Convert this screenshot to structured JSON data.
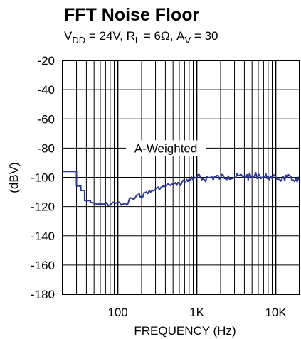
{
  "chart_data": {
    "type": "line",
    "title": "FFT Noise Floor",
    "subtitle": {
      "vdd_name": "V",
      "vdd_sub": "DD",
      "vdd_val": " = 24V, ",
      "rl_name": "R",
      "rl_sub": "L",
      "rl_val": " = 6Ω, ",
      "av_name": "A",
      "av_sub": "V",
      "av_val": " = 30"
    },
    "xlabel": "FREQUENCY (Hz)",
    "ylabel": "(dBV)",
    "x_scale": "log",
    "xlim": [
      20,
      20000
    ],
    "ylim": [
      -180,
      -20
    ],
    "y_ticks": [
      -20,
      -40,
      -60,
      -80,
      -100,
      -120,
      -140,
      -160,
      -180
    ],
    "x_tick_values": [
      100,
      1000,
      10000
    ],
    "x_tick_labels": [
      "100",
      "1K",
      "10K"
    ],
    "grid": true,
    "annotation": "A-Weighted",
    "series_color": "#2b3990",
    "series": [
      {
        "x": [
          20,
          30,
          30,
          34,
          34,
          38,
          38,
          45,
          45,
          52,
          60,
          70,
          80,
          90,
          100,
          110,
          120,
          130,
          145,
          160,
          180,
          200,
          230,
          260,
          300,
          350,
          400,
          450,
          500,
          600,
          700,
          800,
          900,
          1000,
          1200,
          1500,
          2000,
          2500,
          3000,
          4000,
          5000,
          6000,
          7000,
          8000,
          9000,
          10000,
          12000,
          14000,
          16000,
          18000,
          20000
        ],
        "y": [
          -96,
          -96,
          -106,
          -106,
          -109,
          -109,
          -116,
          -116,
          -117,
          -118,
          -119,
          -118,
          -119,
          -117,
          -117,
          -119,
          -118,
          -119,
          -114,
          -115,
          -112,
          -113,
          -110,
          -110,
          -108,
          -107,
          -106,
          -105,
          -105,
          -104,
          -103,
          -101,
          -102,
          -100,
          -101,
          -100,
          -100,
          -99,
          -100,
          -99,
          -100,
          -98,
          -100,
          -99,
          -101,
          -100,
          -101,
          -100,
          -102,
          -101,
          -102
        ]
      }
    ]
  }
}
